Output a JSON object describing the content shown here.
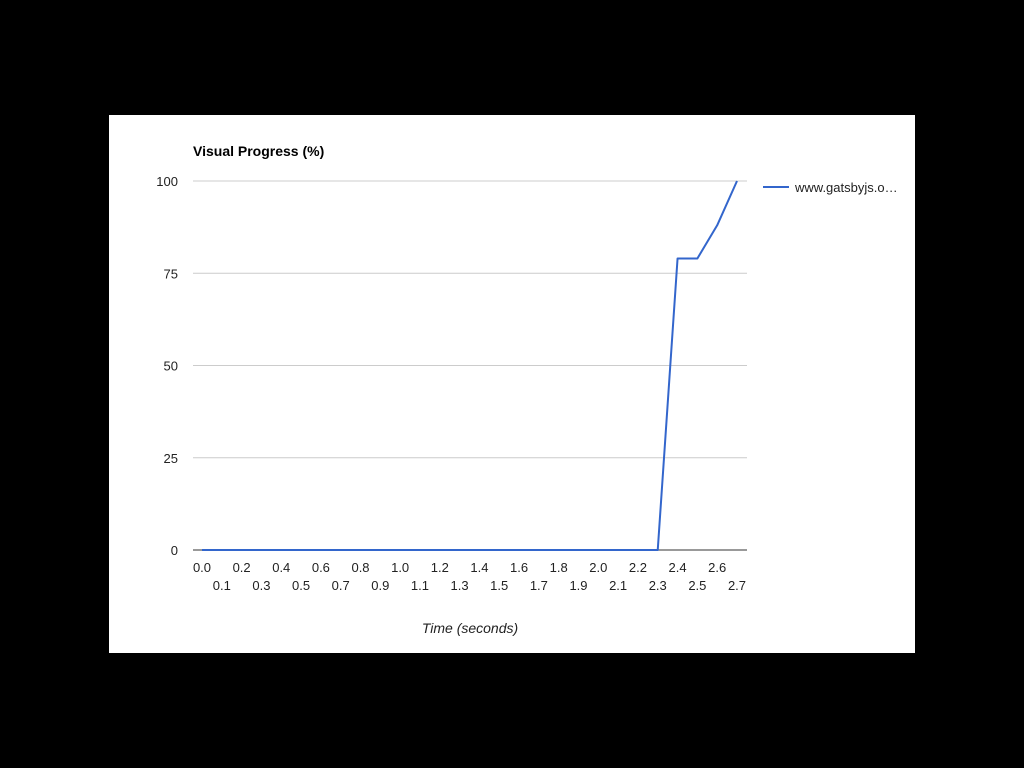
{
  "chart_data": {
    "type": "line",
    "title": "Visual Progress (%)",
    "xlabel": "Time (seconds)",
    "ylabel": "",
    "xlim": [
      0.0,
      2.7
    ],
    "ylim": [
      0,
      100
    ],
    "x_tick_labels": [
      "0.0",
      "0.1",
      "0.2",
      "0.3",
      "0.4",
      "0.5",
      "0.6",
      "0.7",
      "0.8",
      "0.9",
      "1.0",
      "1.1",
      "1.2",
      "1.3",
      "1.4",
      "1.5",
      "1.6",
      "1.7",
      "1.8",
      "1.9",
      "2.0",
      "2.1",
      "2.2",
      "2.3",
      "2.4",
      "2.5",
      "2.6",
      "2.7"
    ],
    "y_tick_labels": [
      "0",
      "25",
      "50",
      "75",
      "100"
    ],
    "y_ticks": [
      0,
      25,
      50,
      75,
      100
    ],
    "grid": true,
    "legend_position": "right",
    "series": [
      {
        "name": "www.gatsbyjs.o…",
        "color": "#3366cc",
        "x": [
          0.0,
          0.1,
          0.2,
          0.3,
          0.4,
          0.5,
          0.6,
          0.7,
          0.8,
          0.9,
          1.0,
          1.1,
          1.2,
          1.3,
          1.4,
          1.5,
          1.6,
          1.7,
          1.8,
          1.9,
          2.0,
          2.1,
          2.2,
          2.3,
          2.4,
          2.5,
          2.6,
          2.7
        ],
        "values": [
          0,
          0,
          0,
          0,
          0,
          0,
          0,
          0,
          0,
          0,
          0,
          0,
          0,
          0,
          0,
          0,
          0,
          0,
          0,
          0,
          0,
          0,
          0,
          0,
          79,
          79,
          88,
          100
        ]
      }
    ]
  }
}
